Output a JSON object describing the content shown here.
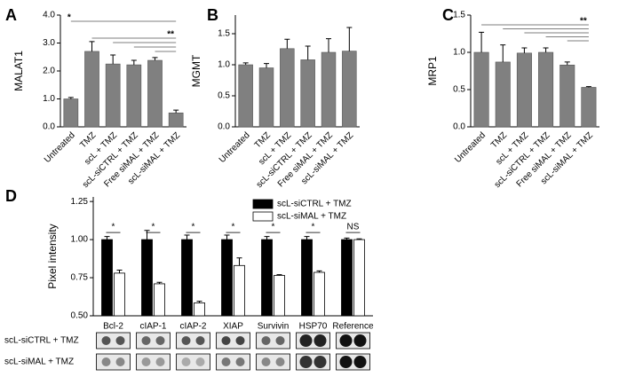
{
  "chart_data": [
    {
      "type": "bar",
      "panel_label": "A",
      "ylabel": "MALAT1",
      "categories": [
        "Untreated",
        "TMZ",
        "scL + TMZ",
        "scL-siCTRL + TMZ",
        "Free siMAL + TMZ",
        "scL-siMAL + TMZ"
      ],
      "values": [
        1.0,
        2.7,
        2.25,
        2.22,
        2.38,
        0.5
      ],
      "errors": [
        0.05,
        0.35,
        0.32,
        0.16,
        0.1,
        0.1
      ],
      "color": "#808080",
      "ylim": [
        0,
        4
      ],
      "yticks": [
        {
          "value": 0,
          "label": "0.0"
        },
        {
          "value": 1,
          "label": "1.0"
        },
        {
          "value": 2,
          "label": "2.0"
        },
        {
          "value": 3,
          "label": "3.0"
        },
        {
          "value": 4,
          "label": "4.0"
        }
      ],
      "annotations": [
        "*",
        "**"
      ]
    },
    {
      "type": "bar",
      "panel_label": "B",
      "ylabel": "MGMT",
      "categories": [
        "Untreated",
        "TMZ",
        "scL + TMZ",
        "scL-siCTRL + TMZ",
        "Free siMAL + TMZ",
        "scL-siMAL + TMZ"
      ],
      "values": [
        1.0,
        0.95,
        1.26,
        1.08,
        1.2,
        1.22
      ],
      "errors": [
        0.03,
        0.07,
        0.15,
        0.22,
        0.22,
        0.38
      ],
      "color": "#808080",
      "ylim": [
        0,
        1.8
      ],
      "yticks": [
        {
          "value": 0,
          "label": "0.0"
        },
        {
          "value": 0.5,
          "label": "0.5"
        },
        {
          "value": 1,
          "label": "1.0"
        },
        {
          "value": 1.5,
          "label": "1.5"
        }
      ]
    },
    {
      "type": "bar",
      "panel_label": "C",
      "ylabel": "MRP1",
      "categories": [
        "Untreated",
        "TMZ",
        "scL + TMZ",
        "scL-siCTRL + TMZ",
        "Free siMAL + TMZ",
        "scL-siMAL + TMZ"
      ],
      "values": [
        1.0,
        0.87,
        0.99,
        1.0,
        0.83,
        0.53
      ],
      "errors": [
        0.27,
        0.23,
        0.07,
        0.06,
        0.04,
        0.01
      ],
      "color": "#808080",
      "ylim": [
        0,
        1.5
      ],
      "yticks": [
        {
          "value": 0,
          "label": "0.0"
        },
        {
          "value": 0.5,
          "label": "0.5"
        },
        {
          "value": 1,
          "label": "1.0"
        },
        {
          "value": 1.5,
          "label": "1.5"
        }
      ],
      "annotations": [
        "**"
      ]
    },
    {
      "type": "grouped_bar",
      "panel_label": "D",
      "ylabel": "Pixel intensity",
      "categories": [
        "Bcl-2",
        "cIAP-1",
        "cIAP-2",
        "XIAP",
        "Survivin",
        "HSP70",
        "Reference"
      ],
      "series": [
        {
          "name": "scL-siCTRL + TMZ",
          "color": "#000000",
          "values": [
            1.0,
            1.0,
            1.0,
            1.0,
            1.0,
            1.0,
            1.0
          ],
          "errors": [
            0.02,
            0.06,
            0.03,
            0.03,
            0.02,
            0.02,
            0.01
          ]
        },
        {
          "name": "scL-siMAL + TMZ",
          "color": "#ffffff",
          "values": [
            0.78,
            0.71,
            0.585,
            0.83,
            0.765,
            0.785,
            1.0
          ],
          "errors": [
            0.02,
            0.01,
            0.01,
            0.05,
            0.005,
            0.01,
            0.005
          ]
        }
      ],
      "significance": [
        "*",
        "*",
        "*",
        "*",
        "*",
        "*",
        "NS"
      ],
      "ylim": [
        0.5,
        1.28
      ],
      "yticks": [
        {
          "value": 0.5,
          "label": "0.50"
        },
        {
          "value": 0.75,
          "label": "0.75"
        },
        {
          "value": 1.0,
          "label": "1.00"
        },
        {
          "value": 1.25,
          "label": "1.25"
        }
      ]
    }
  ]
}
